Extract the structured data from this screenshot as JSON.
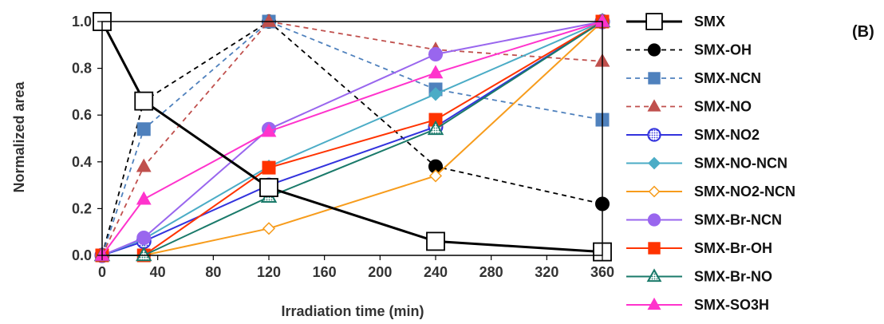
{
  "panel_label": "(B)",
  "chart_data": {
    "type": "line",
    "xlabel": "Irradiation time (min)",
    "ylabel": "Normalized area",
    "xlim": [
      0,
      360
    ],
    "ylim": [
      0,
      1.0
    ],
    "x_ticks": [
      "0",
      "40",
      "80",
      "120",
      "160",
      "200",
      "240",
      "280",
      "320",
      "360"
    ],
    "y_ticks": [
      "0.0",
      "0.2",
      "0.4",
      "0.6",
      "0.8",
      "1.0"
    ],
    "legend_position": "right",
    "grid": false,
    "series": [
      {
        "name": "SMX",
        "color": "#000000",
        "dash": "",
        "marker": "square-open",
        "width": 3,
        "x": [
          0,
          30,
          120,
          240,
          360
        ],
        "y": [
          1.0,
          0.66,
          0.29,
          0.06,
          0.015
        ]
      },
      {
        "name": "SMX-OH",
        "color": "#000000",
        "dash": "6,5",
        "marker": "circle-filled",
        "width": 1.8,
        "x": [
          0,
          30,
          120,
          240,
          360
        ],
        "y": [
          0,
          0.66,
          1.0,
          0.38,
          0.22
        ]
      },
      {
        "name": "SMX-NCN",
        "color": "#4f81bd",
        "dash": "6,5",
        "marker": "square-filled",
        "width": 1.8,
        "x": [
          0,
          30,
          120,
          240,
          360
        ],
        "y": [
          0,
          0.54,
          1.0,
          0.71,
          0.58
        ]
      },
      {
        "name": "SMX-NO",
        "color": "#c0504d",
        "dash": "6,5",
        "marker": "triangle-filled",
        "width": 1.8,
        "x": [
          0,
          30,
          120,
          240,
          360
        ],
        "y": [
          0,
          0.38,
          1.0,
          0.88,
          0.83
        ]
      },
      {
        "name": "SMX-NO2",
        "color": "#3333dd",
        "dash": "",
        "marker": "circle-pattern",
        "width": 2,
        "x": [
          0,
          30,
          120,
          240,
          360
        ],
        "y": [
          0,
          0.06,
          0.3,
          0.55,
          1.0
        ]
      },
      {
        "name": "SMX-NO-NCN",
        "color": "#4bacc6",
        "dash": "",
        "marker": "diamond-filled",
        "width": 2,
        "x": [
          0,
          30,
          120,
          240,
          360
        ],
        "y": [
          0,
          0.07,
          0.38,
          0.69,
          1.0
        ]
      },
      {
        "name": "SMX-NO2-NCN",
        "color": "#f79c1c",
        "dash": "",
        "marker": "diamond-open",
        "width": 2,
        "x": [
          0,
          30,
          120,
          240,
          360
        ],
        "y": [
          0,
          0.0,
          0.115,
          0.34,
          1.0
        ]
      },
      {
        "name": "SMX-Br-NCN",
        "color": "#9966ee",
        "dash": "",
        "marker": "circle-filled",
        "width": 2,
        "x": [
          0,
          30,
          120,
          240,
          360
        ],
        "y": [
          0,
          0.075,
          0.54,
          0.86,
          1.0
        ]
      },
      {
        "name": "SMX-Br-OH",
        "color": "#ff3300",
        "dash": "",
        "marker": "square-filled",
        "width": 2,
        "x": [
          0,
          30,
          120,
          240,
          360
        ],
        "y": [
          0,
          0.0,
          0.375,
          0.58,
          1.0
        ]
      },
      {
        "name": "SMX-Br-NO",
        "color": "#1a7a6a",
        "dash": "",
        "marker": "triangle-pattern",
        "width": 2,
        "x": [
          0,
          30,
          120,
          240,
          360
        ],
        "y": [
          0,
          0.0,
          0.25,
          0.54,
          1.0
        ]
      },
      {
        "name": "SMX-SO3H",
        "color": "#ff33cc",
        "dash": "",
        "marker": "triangle-filled",
        "width": 2,
        "x": [
          0,
          30,
          120,
          240,
          360
        ],
        "y": [
          0,
          0.24,
          0.53,
          0.78,
          1.0
        ]
      }
    ]
  }
}
